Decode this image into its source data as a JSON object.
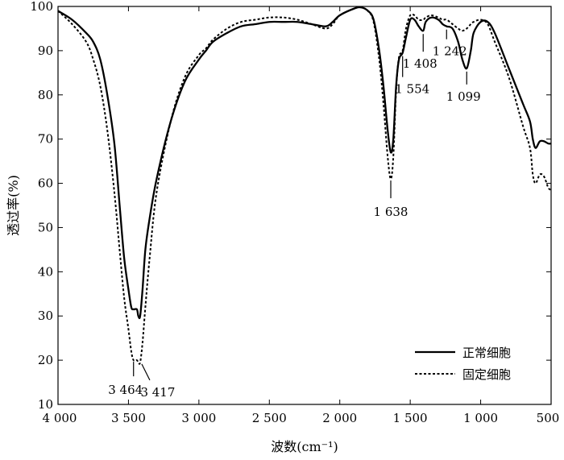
{
  "chart_data": {
    "type": "line",
    "title": "",
    "xlabel": "波数(cm⁻¹)",
    "ylabel": "透过率(%)",
    "xlim": [
      4000,
      500
    ],
    "ylim": [
      10,
      100
    ],
    "x_reversed": true,
    "xticks": [
      4000,
      3500,
      3000,
      2500,
      2000,
      1500,
      1000,
      500
    ],
    "xtick_labels": [
      "4 000",
      "3 500",
      "3 000",
      "2 500",
      "2 000",
      "1 500",
      "1 000",
      "500"
    ],
    "yticks": [
      10,
      20,
      30,
      40,
      50,
      60,
      70,
      80,
      90,
      100
    ],
    "ytick_labels": [
      "10",
      "20",
      "30",
      "40",
      "50",
      "60",
      "70",
      "80",
      "90",
      "100"
    ],
    "grid": false,
    "legend": {
      "placement": "bottom-right"
    },
    "series": [
      {
        "name": "正常细胞",
        "style": "solid",
        "color": "#000000",
        "points": [
          [
            4000,
            99
          ],
          [
            3900,
            97
          ],
          [
            3800,
            94
          ],
          [
            3750,
            92
          ],
          [
            3700,
            88
          ],
          [
            3650,
            80
          ],
          [
            3600,
            69
          ],
          [
            3560,
            54
          ],
          [
            3530,
            43
          ],
          [
            3500,
            36
          ],
          [
            3480,
            32
          ],
          [
            3464,
            31.5
          ],
          [
            3440,
            31.5
          ],
          [
            3430,
            30
          ],
          [
            3417,
            30
          ],
          [
            3400,
            36
          ],
          [
            3380,
            45
          ],
          [
            3350,
            52
          ],
          [
            3300,
            61
          ],
          [
            3200,
            74
          ],
          [
            3100,
            83
          ],
          [
            3000,
            88
          ],
          [
            2950,
            90
          ],
          [
            2900,
            92
          ],
          [
            2800,
            94
          ],
          [
            2700,
            95.5
          ],
          [
            2600,
            96
          ],
          [
            2500,
            96.5
          ],
          [
            2400,
            96.5
          ],
          [
            2300,
            96.5
          ],
          [
            2200,
            96
          ],
          [
            2100,
            95.5
          ],
          [
            2050,
            96.5
          ],
          [
            2000,
            98
          ],
          [
            1900,
            99.5
          ],
          [
            1850,
            99.8
          ],
          [
            1800,
            99
          ],
          [
            1760,
            97
          ],
          [
            1720,
            90
          ],
          [
            1690,
            82
          ],
          [
            1660,
            72
          ],
          [
            1638,
            67
          ],
          [
            1620,
            70
          ],
          [
            1600,
            82
          ],
          [
            1580,
            88
          ],
          [
            1554,
            89.5
          ],
          [
            1530,
            93
          ],
          [
            1500,
            97
          ],
          [
            1470,
            97
          ],
          [
            1440,
            95.5
          ],
          [
            1408,
            94.5
          ],
          [
            1390,
            96.5
          ],
          [
            1350,
            97.5
          ],
          [
            1300,
            97
          ],
          [
            1270,
            96
          ],
          [
            1242,
            95.5
          ],
          [
            1200,
            95
          ],
          [
            1160,
            92
          ],
          [
            1130,
            88
          ],
          [
            1099,
            86
          ],
          [
            1070,
            90
          ],
          [
            1050,
            94
          ],
          [
            1000,
            96.5
          ],
          [
            950,
            96.5
          ],
          [
            900,
            94
          ],
          [
            800,
            86
          ],
          [
            700,
            78
          ],
          [
            650,
            74
          ],
          [
            630,
            70
          ],
          [
            610,
            68
          ],
          [
            580,
            69.5
          ],
          [
            550,
            69.5
          ],
          [
            520,
            69
          ],
          [
            500,
            69
          ]
        ]
      },
      {
        "name": "固定细胞",
        "style": "dotted",
        "color": "#000000",
        "points": [
          [
            4000,
            99
          ],
          [
            3900,
            96
          ],
          [
            3800,
            92
          ],
          [
            3750,
            88
          ],
          [
            3700,
            82
          ],
          [
            3650,
            72
          ],
          [
            3600,
            58
          ],
          [
            3560,
            44
          ],
          [
            3530,
            34
          ],
          [
            3500,
            27
          ],
          [
            3480,
            22
          ],
          [
            3464,
            20
          ],
          [
            3440,
            20
          ],
          [
            3430,
            19.5
          ],
          [
            3417,
            19.5
          ],
          [
            3400,
            24
          ],
          [
            3380,
            32
          ],
          [
            3350,
            43
          ],
          [
            3300,
            58
          ],
          [
            3200,
            74
          ],
          [
            3100,
            84
          ],
          [
            3000,
            89
          ],
          [
            2950,
            90.5
          ],
          [
            2900,
            92.5
          ],
          [
            2800,
            95
          ],
          [
            2700,
            96.5
          ],
          [
            2600,
            97
          ],
          [
            2500,
            97.5
          ],
          [
            2400,
            97.5
          ],
          [
            2300,
            97
          ],
          [
            2200,
            96
          ],
          [
            2100,
            95
          ],
          [
            2050,
            96
          ],
          [
            2000,
            98
          ],
          [
            1900,
            99.5
          ],
          [
            1850,
            99.8
          ],
          [
            1800,
            99
          ],
          [
            1760,
            96.5
          ],
          [
            1720,
            88
          ],
          [
            1690,
            78
          ],
          [
            1660,
            66
          ],
          [
            1638,
            61
          ],
          [
            1620,
            66
          ],
          [
            1600,
            81
          ],
          [
            1580,
            88.5
          ],
          [
            1554,
            90
          ],
          [
            1530,
            95
          ],
          [
            1500,
            98
          ],
          [
            1470,
            98
          ],
          [
            1440,
            97
          ],
          [
            1408,
            97
          ],
          [
            1390,
            97.5
          ],
          [
            1350,
            98
          ],
          [
            1300,
            97.5
          ],
          [
            1270,
            97
          ],
          [
            1242,
            97
          ],
          [
            1200,
            96
          ],
          [
            1160,
            95
          ],
          [
            1130,
            94.5
          ],
          [
            1099,
            95
          ],
          [
            1070,
            96
          ],
          [
            1050,
            96.5
          ],
          [
            1000,
            97
          ],
          [
            950,
            96
          ],
          [
            900,
            92
          ],
          [
            800,
            84
          ],
          [
            700,
            73
          ],
          [
            650,
            68
          ],
          [
            630,
            62
          ],
          [
            610,
            60
          ],
          [
            580,
            62
          ],
          [
            550,
            61.5
          ],
          [
            520,
            59
          ],
          [
            500,
            58.5
          ]
        ]
      }
    ],
    "annotations": [
      {
        "label": "3 464",
        "x": 3464,
        "y": 20
      },
      {
        "label": "3 417",
        "x": 3417,
        "y": 19.5
      },
      {
        "label": "1 638",
        "x": 1638,
        "y": 61
      },
      {
        "label": "1 554",
        "x": 1554,
        "y": 89.5
      },
      {
        "label": "1 408",
        "x": 1408,
        "y": 94.5
      },
      {
        "label": "1 242",
        "x": 1242,
        "y": 95.5
      },
      {
        "label": "1 099",
        "x": 1099,
        "y": 86
      }
    ]
  }
}
